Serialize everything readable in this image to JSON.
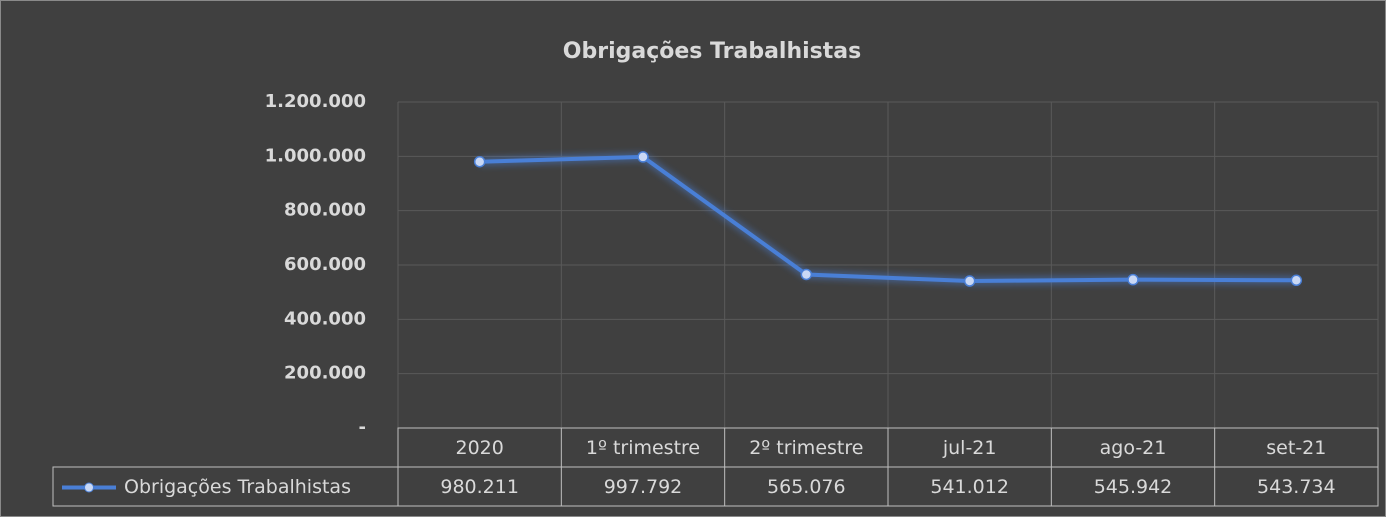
{
  "chart_data": {
    "type": "line",
    "title": "Obrigações Trabalhistas",
    "categories": [
      "2020",
      "1º trimestre",
      "2º trimestre",
      "jul-21",
      "ago-21",
      "set-21"
    ],
    "series": [
      {
        "name": "Obrigações Trabalhistas",
        "color": "#4a7fd6",
        "values": [
          980211,
          997792,
          565076,
          541012,
          545942,
          543734
        ],
        "value_labels": [
          "980.211",
          "997.792",
          "565.076",
          "541.012",
          "545.942",
          "543.734"
        ]
      }
    ],
    "ylim": [
      0,
      1200000
    ],
    "yticks": [
      {
        "value": 0,
        "label": "-"
      },
      {
        "value": 200000,
        "label": "200.000"
      },
      {
        "value": 400000,
        "label": "400.000"
      },
      {
        "value": 600000,
        "label": "600.000"
      },
      {
        "value": 800000,
        "label": "800.000"
      },
      {
        "value": 1000000,
        "label": "1.000.000"
      },
      {
        "value": 1200000,
        "label": "1.200.000"
      }
    ],
    "grid": true
  }
}
